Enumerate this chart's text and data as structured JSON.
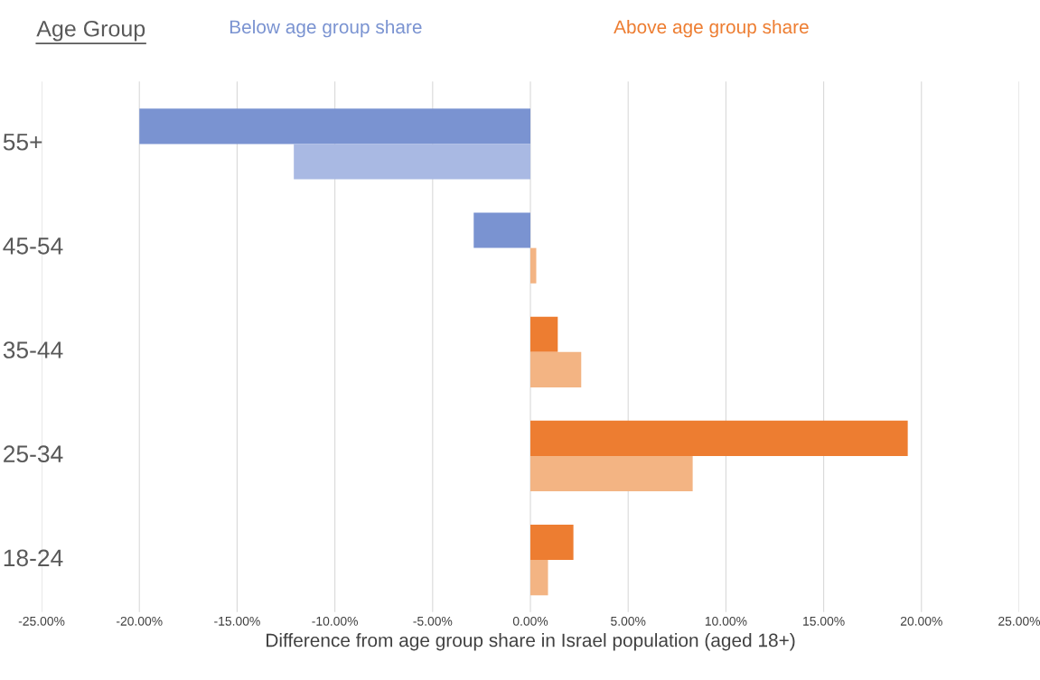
{
  "chart_data": {
    "type": "bar",
    "orientation": "horizontal",
    "categories": [
      "55+",
      "45-54",
      "35-44",
      "25-34",
      "18-24"
    ],
    "series": [
      {
        "colors": [
          "#7a93d1",
          "#7a93d1",
          "#ed7d31",
          "#ed7d31",
          "#ed7d31"
        ],
        "values": [
          -20.0,
          -2.9,
          1.4,
          19.3,
          2.2
        ]
      },
      {
        "colors": [
          "#a9b9e3",
          "#f3b483",
          "#f3b483",
          "#f3b483",
          "#f3b483"
        ],
        "values": [
          -12.1,
          0.3,
          2.6,
          8.3,
          0.9
        ]
      }
    ],
    "xlabel": "Difference from age group share in Israel population (aged 18+)",
    "annotations": [
      "Age Group",
      "Below age group share",
      "Above age group share"
    ],
    "xlim": [
      -25,
      25
    ],
    "xticks": [
      {
        "value": -25,
        "label": "-25.00%"
      },
      {
        "value": -20,
        "label": "-20.00%"
      },
      {
        "value": -15,
        "label": "-15.00%"
      },
      {
        "value": -10,
        "label": "-10.00%"
      },
      {
        "value": -5,
        "label": "-5.00%"
      },
      {
        "value": 0,
        "label": "0.00%"
      },
      {
        "value": 5,
        "label": "5.00%"
      },
      {
        "value": 10,
        "label": "10.00%"
      },
      {
        "value": 15,
        "label": "15.00%"
      },
      {
        "value": 20,
        "label": "20.00%"
      },
      {
        "value": 25,
        "label": "25.00%"
      }
    ],
    "grid": "x"
  }
}
